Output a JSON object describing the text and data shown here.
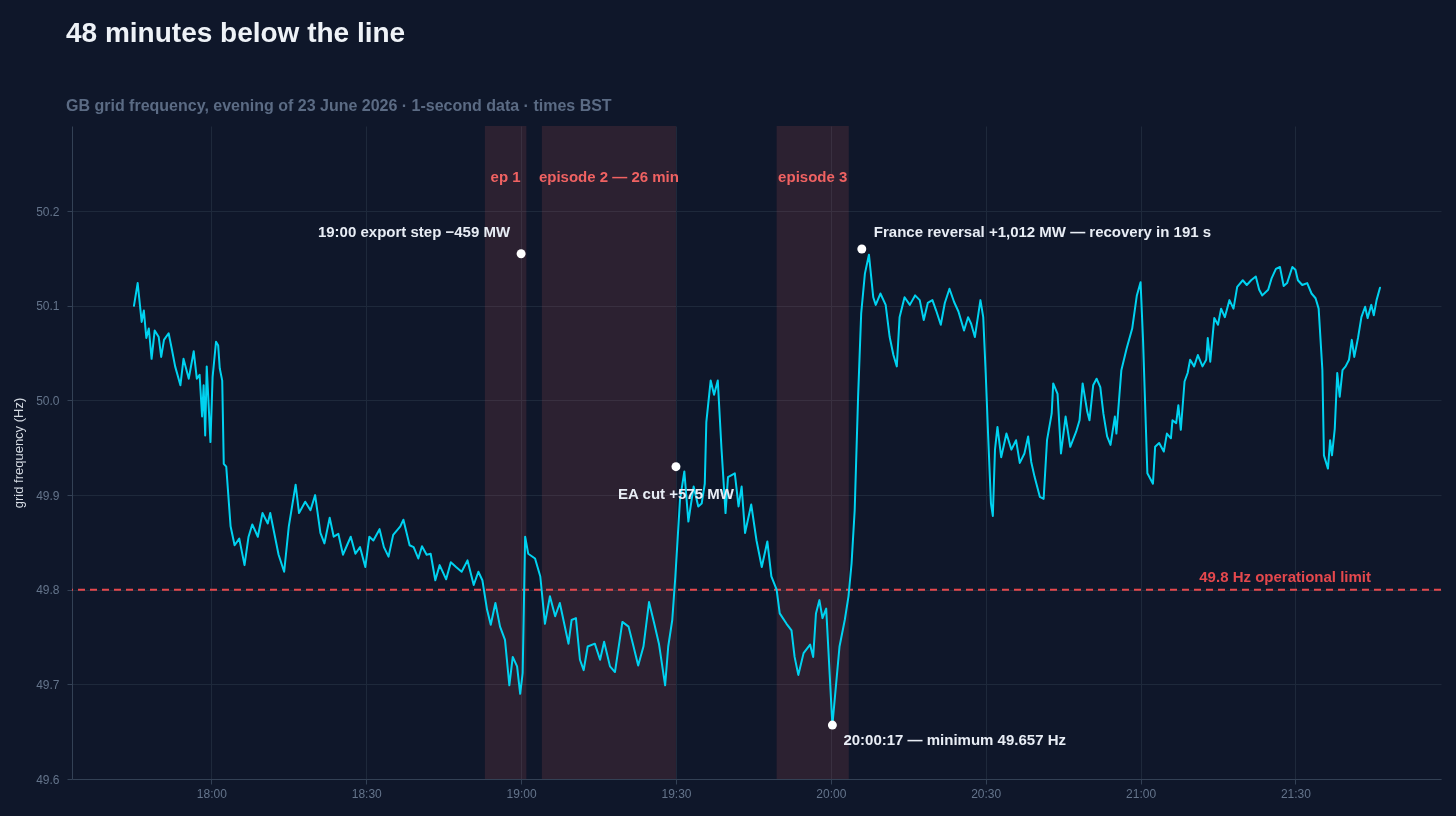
{
  "chart_data": {
    "type": "line",
    "title": "48 minutes below the line",
    "subtitle": "GB grid frequency, evening of 23 June 2026 · 1-second data · times BST",
    "ylabel": "grid frequency (Hz)",
    "x": [
      17.75,
      17.762,
      17.775,
      17.782,
      17.79,
      17.798,
      17.807,
      17.817,
      17.83,
      17.838,
      17.847,
      17.862,
      17.873,
      17.883,
      17.9,
      17.91,
      17.927,
      17.943,
      17.953,
      17.962,
      17.97,
      17.975,
      17.98,
      17.985,
      17.997,
      18.004,
      18.015,
      18.022,
      18.027,
      18.035,
      18.04,
      18.048,
      18.062,
      18.075,
      18.09,
      18.107,
      18.12,
      18.132,
      18.15,
      18.165,
      18.182,
      18.19,
      18.217,
      18.235,
      18.25,
      18.272,
      18.283,
      18.303,
      18.32,
      18.335,
      18.352,
      18.365,
      18.382,
      18.395,
      18.41,
      18.425,
      18.438,
      18.45,
      18.465,
      18.48,
      18.497,
      18.51,
      18.523,
      18.543,
      18.557,
      18.572,
      18.587,
      18.61,
      18.62,
      18.64,
      18.653,
      18.668,
      18.68,
      18.695,
      18.708,
      18.723,
      18.737,
      18.758,
      18.773,
      18.79,
      18.808,
      18.827,
      18.847,
      18.862,
      18.875,
      18.89,
      18.902,
      18.917,
      18.932,
      18.948,
      18.962,
      18.973,
      18.987,
      18.997,
      19.005,
      19.013,
      19.023,
      19.045,
      19.062,
      19.077,
      19.093,
      19.11,
      19.125,
      19.153,
      19.163,
      19.177,
      19.19,
      19.202,
      19.215,
      19.238,
      19.255,
      19.268,
      19.287,
      19.303,
      19.327,
      19.347,
      19.363,
      19.378,
      19.395,
      19.413,
      19.43,
      19.445,
      19.465,
      19.475,
      19.488,
      19.498,
      19.513,
      19.527,
      19.54,
      19.557,
      19.572,
      19.583,
      19.593,
      19.598,
      19.612,
      19.623,
      19.635,
      19.647,
      19.66,
      19.668,
      19.69,
      19.702,
      19.712,
      19.723,
      19.743,
      19.76,
      19.777,
      19.795,
      19.808,
      19.825,
      19.835,
      19.857,
      19.873,
      19.883,
      19.895,
      19.912,
      19.933,
      19.943,
      19.952,
      19.963,
      19.973,
      19.985,
      20.005,
      20.028,
      20.045,
      20.057,
      20.067,
      20.077,
      20.088,
      20.098,
      20.11,
      20.123,
      20.137,
      20.145,
      20.16,
      20.177,
      20.19,
      20.202,
      20.213,
      20.222,
      20.238,
      20.255,
      20.272,
      20.287,
      20.3,
      20.313,
      20.328,
      20.34,
      20.355,
      20.368,
      20.383,
      20.398,
      20.412,
      20.43,
      20.443,
      20.453,
      20.465,
      20.483,
      20.492,
      20.5,
      20.508,
      20.517,
      20.523,
      20.53,
      20.538,
      20.55,
      20.567,
      20.583,
      20.598,
      20.61,
      20.625,
      20.637,
      20.647,
      20.658,
      20.675,
      20.687,
      20.698,
      20.713,
      20.718,
      20.732,
      20.743,
      20.758,
      20.773,
      20.792,
      20.803,
      20.813,
      20.828,
      20.835,
      20.847,
      20.858,
      20.87,
      20.88,
      20.892,
      20.903,
      20.917,
      20.922,
      20.938,
      20.955,
      20.973,
      20.988,
      21.0,
      21.008,
      21.022,
      21.04,
      21.047,
      21.06,
      21.075,
      21.085,
      21.098,
      21.103,
      21.115,
      21.122,
      21.13,
      21.142,
      21.152,
      21.16,
      21.173,
      21.185,
      21.2,
      21.212,
      21.217,
      21.225,
      21.238,
      21.25,
      21.26,
      21.272,
      21.287,
      21.3,
      21.312,
      21.33,
      21.343,
      21.357,
      21.372,
      21.383,
      21.393,
      21.412,
      21.423,
      21.437,
      21.45,
      21.462,
      21.473,
      21.49,
      21.5,
      21.508,
      21.522,
      21.538,
      21.552,
      21.565,
      21.575,
      21.587,
      21.592,
      21.605,
      21.612,
      21.618,
      21.627,
      21.635,
      21.643,
      21.652,
      21.662,
      21.673,
      21.682,
      21.69,
      21.702,
      21.713,
      21.725,
      21.733,
      21.745,
      21.753,
      21.762,
      21.773
    ],
    "series": [
      {
        "color": "#00d2f0",
        "values": [
          50.1,
          50.124,
          50.083,
          50.095,
          50.066,
          50.076,
          50.044,
          50.074,
          50.067,
          50.046,
          50.064,
          50.071,
          50.053,
          50.036,
          50.016,
          50.044,
          50.023,
          50.052,
          50.023,
          50.027,
          49.983,
          50.016,
          49.963,
          50.036,
          49.956,
          50.025,
          50.062,
          50.058,
          50.034,
          50.021,
          49.933,
          49.93,
          49.867,
          49.847,
          49.854,
          49.826,
          49.856,
          49.869,
          49.856,
          49.881,
          49.87,
          49.881,
          49.837,
          49.819,
          49.867,
          49.911,
          49.881,
          49.893,
          49.884,
          49.9,
          49.86,
          49.849,
          49.876,
          49.856,
          49.859,
          49.837,
          49.847,
          49.856,
          49.838,
          49.845,
          49.824,
          49.856,
          49.852,
          49.864,
          49.845,
          49.835,
          49.858,
          49.867,
          49.874,
          49.847,
          49.845,
          49.833,
          49.846,
          49.837,
          49.838,
          49.81,
          49.826,
          49.811,
          49.829,
          49.824,
          49.819,
          49.831,
          49.805,
          49.819,
          49.81,
          49.779,
          49.763,
          49.786,
          49.761,
          49.747,
          49.699,
          49.729,
          49.719,
          49.69,
          49.712,
          49.856,
          49.838,
          49.833,
          49.814,
          49.764,
          49.793,
          49.772,
          49.786,
          49.743,
          49.768,
          49.77,
          49.726,
          49.715,
          49.74,
          49.743,
          49.726,
          49.745,
          49.719,
          49.713,
          49.766,
          49.761,
          49.74,
          49.72,
          49.74,
          49.787,
          49.764,
          49.743,
          49.699,
          49.74,
          49.768,
          49.814,
          49.895,
          49.925,
          49.872,
          49.909,
          49.888,
          49.891,
          49.912,
          49.977,
          50.021,
          50.006,
          50.021,
          49.949,
          49.881,
          49.919,
          49.923,
          49.888,
          49.909,
          49.86,
          49.89,
          49.852,
          49.824,
          49.851,
          49.814,
          49.8,
          49.775,
          49.764,
          49.757,
          49.729,
          49.71,
          49.733,
          49.742,
          49.729,
          49.775,
          49.789,
          49.77,
          49.78,
          49.657,
          49.74,
          49.768,
          49.793,
          49.828,
          49.884,
          50.004,
          50.092,
          50.134,
          50.154,
          50.109,
          50.101,
          50.113,
          50.101,
          50.067,
          50.048,
          50.036,
          50.088,
          50.109,
          50.101,
          50.111,
          50.106,
          50.085,
          50.103,
          50.106,
          50.095,
          50.08,
          50.103,
          50.118,
          50.104,
          50.094,
          50.074,
          50.088,
          50.081,
          50.067,
          50.106,
          50.088,
          50.029,
          49.962,
          49.891,
          49.878,
          49.948,
          49.972,
          49.94,
          49.965,
          49.948,
          49.958,
          49.934,
          49.944,
          49.962,
          49.935,
          49.919,
          49.898,
          49.896,
          49.958,
          49.986,
          50.018,
          50.007,
          49.944,
          49.983,
          49.951,
          49.967,
          49.979,
          50.018,
          49.988,
          49.979,
          50.016,
          50.023,
          50.014,
          49.986,
          49.962,
          49.953,
          49.983,
          49.965,
          50.032,
          50.055,
          50.076,
          50.111,
          50.125,
          50.064,
          49.923,
          49.912,
          49.951,
          49.955,
          49.946,
          49.965,
          49.96,
          49.979,
          49.976,
          49.995,
          49.969,
          50.02,
          50.029,
          50.043,
          50.036,
          50.048,
          50.036,
          50.043,
          50.066,
          50.041,
          50.087,
          50.08,
          50.097,
          50.088,
          50.106,
          50.097,
          50.12,
          50.127,
          50.122,
          50.127,
          50.131,
          50.117,
          50.111,
          50.117,
          50.129,
          50.139,
          50.141,
          50.121,
          50.124,
          50.141,
          50.138,
          50.127,
          50.122,
          50.124,
          50.113,
          50.108,
          50.097,
          50.032,
          49.942,
          49.928,
          49.958,
          49.942,
          49.97,
          50.029,
          50.004,
          50.032,
          50.036,
          50.043,
          50.064,
          50.046,
          50.066,
          50.088,
          50.099,
          50.087,
          50.101,
          50.09,
          50.106,
          50.119
        ]
      }
    ],
    "xlim": [
      17.55,
      21.97
    ],
    "xticks": [
      {
        "value": 18,
        "label": "18:00"
      },
      {
        "value": 18.5,
        "label": "18:30"
      },
      {
        "value": 19,
        "label": "19:00"
      },
      {
        "value": 19.5,
        "label": "19:30"
      },
      {
        "value": 20,
        "label": "20:00"
      },
      {
        "value": 20.5,
        "label": "20:30"
      },
      {
        "value": 21,
        "label": "21:00"
      },
      {
        "value": 21.5,
        "label": "21:30"
      }
    ],
    "ylim": [
      49.6,
      50.29
    ],
    "yticks": [
      49.6,
      49.7,
      49.8,
      49.9,
      {
        "value": 50.0,
        "label": "50.0"
      },
      50.1,
      50.2
    ],
    "grid": true,
    "ref_lines": [
      {
        "axis": "y",
        "value": 49.8,
        "label": "49.8 Hz operational limit",
        "color": "#e5484d",
        "line_style": "dashed"
      }
    ],
    "bands": [
      {
        "axis": "x",
        "from": 18.883,
        "to": 19.017,
        "label": "ep 1"
      },
      {
        "axis": "x",
        "from": 19.067,
        "to": 19.5,
        "label": "episode 2 — 26 min"
      },
      {
        "axis": "x",
        "from": 19.825,
        "to": 20.058,
        "label": "episode 3"
      }
    ],
    "annotations": [
      {
        "text": "19:00 export step −459 MW",
        "x": 19.0,
        "y": 50.155
      },
      {
        "text": "EA cut +575 MW",
        "x": 19.5,
        "y": 49.93
      },
      {
        "text": "France reversal +1,012 MW — recovery in 191 s",
        "x": 20.1,
        "y": 50.16
      },
      {
        "text": "20:00:17 — minimum 49.657 Hz",
        "x": 20.005,
        "y": 49.657
      }
    ]
  }
}
